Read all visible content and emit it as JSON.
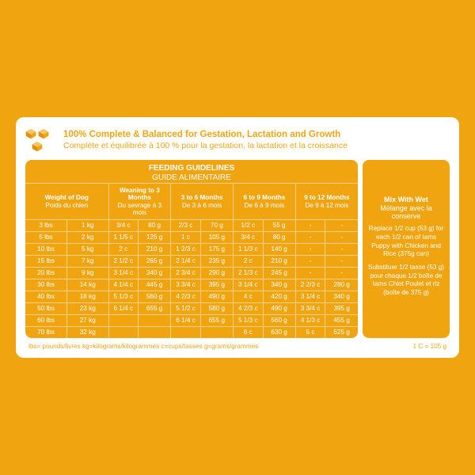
{
  "header": {
    "title_en": "100% Complete & Balanced for Gestation, Lactation and Growth",
    "title_fr": "Complète et équilibrée à 100 % pour la gestation, la lactation et la croissance"
  },
  "table": {
    "title_en": "FEEDING GUIDELINES",
    "title_fr": "GUIDE ALIMENTAIRE",
    "columns": [
      {
        "en": "Weight of Dog",
        "fr": "Poids du chien"
      },
      {
        "en": "Weaning to 3 Months",
        "fr": "Du sevrage à 3 mois"
      },
      {
        "en": "3 to 6 Months",
        "fr": "De 3 à 6 mois"
      },
      {
        "en": "6 to 9 Months",
        "fr": "De 6 à 9 mois"
      },
      {
        "en": "9 to 12 Months",
        "fr": "De 9 à 12 mois"
      }
    ],
    "rows": [
      {
        "lbs": "3 lbs",
        "kg": "1 kg",
        "c": [
          "3/4 c",
          "2/3 c",
          "1/2 c",
          "-"
        ],
        "g": [
          "80 g",
          "70 g",
          "55 g",
          "-"
        ]
      },
      {
        "lbs": "5 lbs",
        "kg": "2 kg",
        "c": [
          "1 1/5 c",
          "1 c",
          "3/4 c",
          "-"
        ],
        "g": [
          "125 g",
          "105 g",
          "80 g",
          "-"
        ]
      },
      {
        "lbs": "10 lbs",
        "kg": "5 kg",
        "c": [
          "2 c",
          "1 2/3 c",
          "1 1/3 c",
          "-"
        ],
        "g": [
          "210 g",
          "175 g",
          "140 g",
          "-"
        ]
      },
      {
        "lbs": "15 lbs",
        "kg": "7 kg",
        "c": [
          "2 1/2 c",
          "2 1/4 c",
          "2 c",
          "-"
        ],
        "g": [
          "265 g",
          "235 g",
          "210 g",
          "-"
        ]
      },
      {
        "lbs": "20 lbs",
        "kg": "9 kg",
        "c": [
          "3 1/4 c",
          "2 3/4 c",
          "2 1/3 c",
          "-"
        ],
        "g": [
          "340 g",
          "290 g",
          "245 g",
          "-"
        ]
      },
      {
        "lbs": "30 lbs",
        "kg": "14 kg",
        "c": [
          "4 1/4 c",
          "3 3/4 c",
          "3 1/4 c",
          "2 2/3 c"
        ],
        "g": [
          "445 g",
          "395 g",
          "340 g",
          "280 g"
        ]
      },
      {
        "lbs": "40 lbs",
        "kg": "18 kg",
        "c": [
          "5 1/3 c",
          "4 2/3 c",
          "4 c",
          "3 1/4 c"
        ],
        "g": [
          "560 g",
          "490 g",
          "420 g",
          "340 g"
        ]
      },
      {
        "lbs": "50 lbs",
        "kg": "23 kg",
        "c": [
          "6 1/4 c",
          "5 1/2 c",
          "4 2/3 c",
          "3 3/4 c"
        ],
        "g": [
          "655 g",
          "580 g",
          "490 g",
          "395 g"
        ]
      },
      {
        "lbs": "60 lbs",
        "kg": "27 kg",
        "c": [
          "",
          "6 1/4 c",
          "5 1/3 c",
          "4 1/3 c"
        ],
        "g": [
          "",
          "655 g",
          "560 g",
          "455 g"
        ]
      },
      {
        "lbs": "70 lbs",
        "kg": "32 kg",
        "c": [
          "",
          "",
          "6 c",
          "5 c"
        ],
        "g": [
          "",
          "",
          "630 g",
          "525 g"
        ]
      }
    ]
  },
  "side": {
    "title_en": "Mix With Wet",
    "title_fr": "Mélange avec la conserve",
    "p1": "Replace 1/2 cup (53 g) for each 1/2 can of Iams Puppy with Chicken and Rice (375g can)",
    "p2": "Substituer 1/2 tasse (53 g) pour chaque 1/2 boîte de Iams Chiot Poulet et riz (boîte de 375 g)"
  },
  "footer": {
    "legend": "lbs= pounds/livres kg=kilograms/kilogrammes c=cups/tasses g=grams/grammes",
    "conversion": "1 C = 105 g"
  },
  "colors": {
    "brand": "#f0a510",
    "white": "#ffffff"
  }
}
